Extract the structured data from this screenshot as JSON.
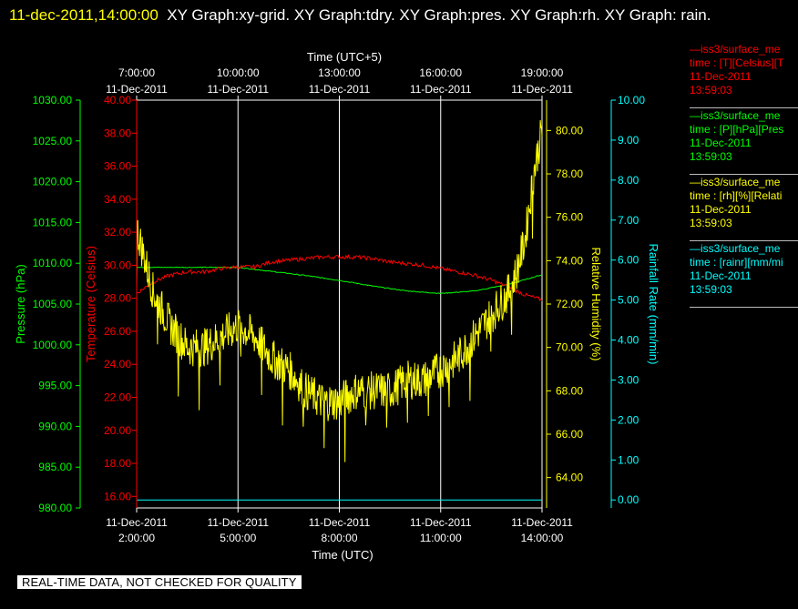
{
  "header": {
    "timestamp": "11-dec-2011,14:00:00",
    "graphs": "XY Graph:xy-grid.  XY Graph:tdry.  XY Graph:pres.  XY Graph:rh.  XY Graph: rain."
  },
  "footer_note": "REAL-TIME DATA, NOT CHECKED FOR QUALITY",
  "colors": {
    "temperature": "#ff0000",
    "pressure": "#00ff00",
    "humidity": "#ffff00",
    "rain": "#00ffff",
    "grid": "#ffffff",
    "background": "#000000"
  },
  "legend": [
    {
      "color": "#ff0000",
      "line1": "—iss3/surface_me",
      "line2": "time : [T][Celsius][T",
      "line3": "11-Dec-2011",
      "line4": "13:59:03"
    },
    {
      "color": "#00ff00",
      "line1": "—iss3/surface_me",
      "line2": "time : [P][hPa][Pres",
      "line3": "11-Dec-2011",
      "line4": "13:59:03"
    },
    {
      "color": "#ffff00",
      "line1": "—iss3/surface_me",
      "line2": "time : [rh][%][Relati",
      "line3": "11-Dec-2011",
      "line4": "13:59:03"
    },
    {
      "color": "#00ffff",
      "line1": "—iss3/surface_me",
      "line2": "time : [rainr][mm/mi",
      "line3": "11-Dec-2011",
      "line4": "13:59:03"
    }
  ],
  "chart_data": {
    "type": "line",
    "grid": true,
    "legend_placement": "right",
    "top_axis": {
      "label": "Time (UTC+5)",
      "ticks": [
        {
          "time": "7:00:00",
          "date": "11-Dec-2011"
        },
        {
          "time": "10:00:00",
          "date": "11-Dec-2011"
        },
        {
          "time": "13:00:00",
          "date": "11-Dec-2011"
        },
        {
          "time": "16:00:00",
          "date": "11-Dec-2011"
        },
        {
          "time": "19:00:00",
          "date": "11-Dec-2011"
        }
      ]
    },
    "bottom_axis": {
      "label": "Time (UTC)",
      "xlim": [
        "2:00:00",
        "14:00:00"
      ],
      "ticks": [
        {
          "date": "11-Dec-2011",
          "time": "2:00:00"
        },
        {
          "date": "11-Dec-2011",
          "time": "5:00:00"
        },
        {
          "date": "11-Dec-2011",
          "time": "8:00:00"
        },
        {
          "date": "11-Dec-2011",
          "time": "11:00:00"
        },
        {
          "date": "11-Dec-2011",
          "time": "14:00:00"
        }
      ]
    },
    "axes": {
      "pressure": {
        "label": "Pressure (hPa)",
        "ylim": [
          980,
          1030
        ],
        "ticks": [
          "980.00",
          "985.00",
          "990.00",
          "995.00",
          "1000.00",
          "1005.00",
          "1010.00",
          "1015.00",
          "1020.00",
          "1025.00",
          "1030.00"
        ]
      },
      "temperature": {
        "label": "Temperature (Celsius)",
        "ylim": [
          15.3,
          40
        ],
        "ticks": [
          "16.00",
          "18.00",
          "20.00",
          "22.00",
          "24.00",
          "26.00",
          "28.00",
          "30.00",
          "32.00",
          "34.00",
          "36.00",
          "38.00",
          "40.00"
        ]
      },
      "humidity": {
        "label": "Relative Humidity (%)",
        "ylim": [
          62.6,
          81.4
        ],
        "ticks": [
          "64.00",
          "66.00",
          "68.00",
          "70.00",
          "72.00",
          "74.00",
          "76.00",
          "78.00",
          "80.00"
        ]
      },
      "rain": {
        "label": "Rainfall Rate (mm/min)",
        "ylim": [
          -0.2,
          10
        ],
        "ticks": [
          "0.00",
          "1.00",
          "2.00",
          "3.00",
          "4.00",
          "5.00",
          "6.00",
          "7.00",
          "8.00",
          "9.00",
          "10.00"
        ]
      }
    },
    "series": [
      {
        "name": "iss3/surface_me [T][Celsius]",
        "axis": "temperature",
        "x": [
          2,
          2.5,
          3,
          3.5,
          4,
          4.5,
          5,
          5.5,
          6,
          6.5,
          7,
          7.5,
          8,
          8.5,
          9,
          9.5,
          10,
          10.5,
          11,
          11.5,
          12,
          12.5,
          13,
          13.5,
          14
        ],
        "y": [
          28.3,
          29.0,
          29.4,
          29.6,
          29.6,
          29.8,
          29.9,
          29.9,
          30.2,
          30.3,
          30.4,
          30.5,
          30.5,
          30.5,
          30.4,
          30.2,
          30.1,
          30.0,
          29.8,
          29.6,
          29.4,
          29.1,
          28.7,
          28.2,
          27.9
        ]
      },
      {
        "name": "iss3/surface_me [P][hPa]",
        "axis": "pressure",
        "x": [
          2,
          3,
          4,
          5,
          6,
          7,
          8,
          9,
          10,
          11,
          12,
          13,
          14
        ],
        "y": [
          1009.5,
          1009.5,
          1009.5,
          1009.5,
          1009.0,
          1008.5,
          1007.9,
          1007.2,
          1006.6,
          1006.3,
          1006.6,
          1007.4,
          1008.6
        ]
      },
      {
        "name": "iss3/surface_me [rh][%]",
        "axis": "humidity",
        "x": [
          2,
          2.25,
          2.5,
          3,
          3.5,
          4,
          4.5,
          5,
          5.5,
          6,
          6.5,
          7,
          7.5,
          8,
          8.5,
          9,
          9.5,
          10,
          10.5,
          11,
          11.5,
          12,
          12.5,
          13,
          13.25,
          13.5,
          13.75,
          14
        ],
        "y": [
          75.5,
          74.0,
          72.5,
          71.0,
          70.0,
          70.0,
          70.5,
          71.0,
          70.5,
          69.5,
          69.0,
          68.0,
          67.5,
          67.5,
          68.0,
          68.0,
          68.0,
          68.5,
          68.5,
          69.0,
          69.5,
          70.5,
          71.5,
          72.5,
          73.5,
          75.0,
          78.0,
          80.0
        ]
      },
      {
        "name": "iss3/surface_me [rainr][mm/min]",
        "axis": "rain",
        "x": [
          2,
          14
        ],
        "y": [
          0.0,
          0.0
        ]
      }
    ]
  }
}
